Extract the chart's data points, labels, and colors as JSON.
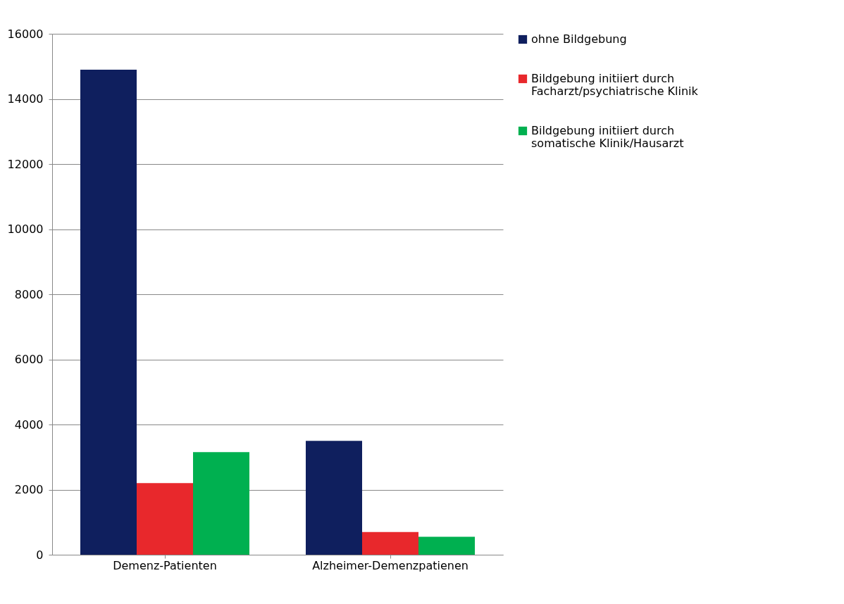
{
  "chart_data": {
    "type": "bar",
    "categories": [
      "Demenz-Patienten",
      "Alzheimer-Demenzpatienen"
    ],
    "series": [
      {
        "name": "ohne Bildgebung",
        "color": "#0f1f5e",
        "values": [
          14900,
          3500
        ]
      },
      {
        "name": "Bildgebung initiiert durch Facharzt/psychiatrische Klinik",
        "color": "#e8282c",
        "values": [
          2200,
          700
        ]
      },
      {
        "name": "Bildgebung initiiert durch somatische Klinik/Hausarzt",
        "color": "#00b050",
        "values": [
          3150,
          550
        ]
      }
    ],
    "ylim": [
      0,
      16000
    ],
    "yticks": [
      0,
      2000,
      4000,
      6000,
      8000,
      10000,
      12000,
      14000,
      16000
    ],
    "grid": "y",
    "legend": "right"
  }
}
